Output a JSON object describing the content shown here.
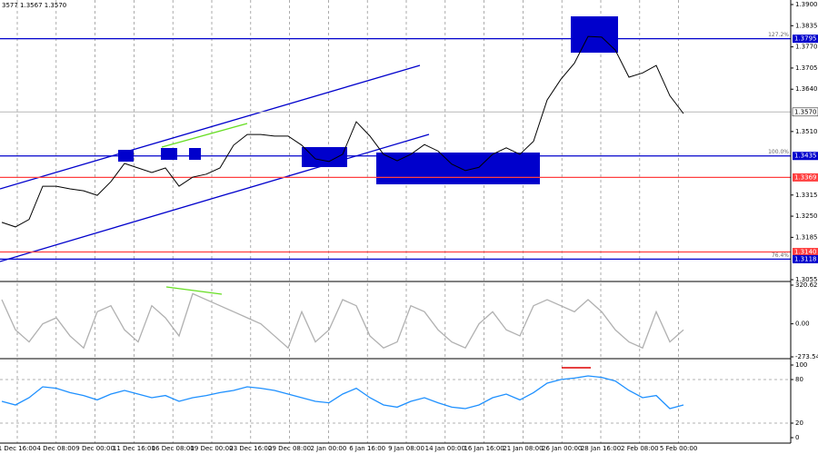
{
  "chart_data": [
    {
      "type": "line",
      "header": "3577 1.3567 1.3570",
      "color": "#000000",
      "values": [
        1.3231,
        1.3217,
        1.324,
        1.3342,
        1.3342,
        1.3334,
        1.3328,
        1.3314,
        1.3356,
        1.3412,
        1.3398,
        1.3384,
        1.3398,
        1.3342,
        1.337,
        1.3379,
        1.3398,
        1.3468,
        1.3501,
        1.3501,
        1.3496,
        1.3496,
        1.3468,
        1.3426,
        1.3418,
        1.344,
        1.354,
        1.3496,
        1.344,
        1.342,
        1.344,
        1.347,
        1.345,
        1.341,
        1.339,
        1.34,
        1.344,
        1.346,
        1.344,
        1.348,
        1.3607,
        1.367,
        1.372,
        1.3802,
        1.38,
        1.376,
        1.3677,
        1.369,
        1.3713,
        1.362,
        1.3565
      ],
      "ylim": [
        1.3055,
        1.39
      ],
      "yticks": [
        1.3055,
        1.3185,
        {
          "value": 1.325,
          "label": "1.3250"
        },
        1.3315,
        {
          "value": 1.351,
          "label": "1.3510"
        },
        {
          "value": 1.364,
          "label": "1.3640"
        },
        1.3705,
        {
          "value": 1.377,
          "label": "1.3770"
        },
        1.3835,
        {
          "value": 1.39,
          "label": "1.3900"
        }
      ],
      "levels": [
        {
          "value": 1.3795,
          "label": "1.3795",
          "tag": "127.2%",
          "color": "#0000cc"
        },
        {
          "value": 1.357,
          "label": "1.3570",
          "color": "#c0c0c0"
        },
        {
          "value": 1.3435,
          "label": "1.3435",
          "tag": "100.0%",
          "color": "#0000cc"
        },
        {
          "value": 1.3369,
          "label": "1.3369",
          "color": "#ff4040"
        },
        {
          "value": 1.314,
          "label": "1.3140",
          "color": "#ff4040"
        },
        {
          "value": 1.3118,
          "label": "1.3118",
          "tag": "76.4%",
          "color": "#0000cc"
        }
      ]
    },
    {
      "type": "line",
      "color": "#b0b0b0",
      "values": [
        200,
        -50,
        -150,
        0,
        50,
        -100,
        -200,
        100,
        150,
        -50,
        -150,
        150,
        50,
        -100,
        250,
        200,
        150,
        100,
        50,
        0,
        -100,
        -200,
        100,
        -150,
        -50,
        200,
        150,
        -100,
        -200,
        -150,
        150,
        100,
        -50,
        -150,
        -200,
        0,
        100,
        -50,
        -100,
        150,
        200,
        150,
        100,
        200,
        100,
        -50,
        -150,
        -200,
        100,
        -150,
        -50
      ],
      "ylim": [
        -273.545,
        320.6269
      ],
      "yticks": [
        -273.545,
        {
          "value": 0,
          "label": "0.00"
        },
        320.6269
      ]
    },
    {
      "type": "line",
      "color": "#1e90ff",
      "values": [
        50,
        45,
        55,
        70,
        68,
        62,
        58,
        52,
        60,
        65,
        60,
        55,
        58,
        50,
        55,
        58,
        62,
        65,
        70,
        68,
        65,
        60,
        55,
        50,
        48,
        60,
        68,
        55,
        45,
        42,
        50,
        55,
        48,
        42,
        40,
        45,
        55,
        60,
        52,
        62,
        75,
        80,
        82,
        85,
        83,
        78,
        65,
        55,
        58,
        40,
        45
      ],
      "ylim": [
        0,
        100
      ],
      "yticks": [
        0,
        20,
        80,
        100
      ],
      "xticklabels": [
        "1 Dec 16:00",
        "4 Dec 08:00",
        "9 Dec 00:00",
        "11 Dec 16:00",
        "16 Dec 08:00",
        "19 Dec 00:00",
        "23 Dec 16:00",
        "29 Dec 08:00",
        "2 Jan 00:00",
        "6 Jan 16:00",
        "9 Jan 08:00",
        "14 Jan 00:00",
        "16 Jan 16:00",
        "21 Jan 08:00",
        "26 Jan 00:00",
        "28 Jan 16:00",
        "2 Feb 08:00",
        "5 Feb 00:00"
      ]
    }
  ]
}
